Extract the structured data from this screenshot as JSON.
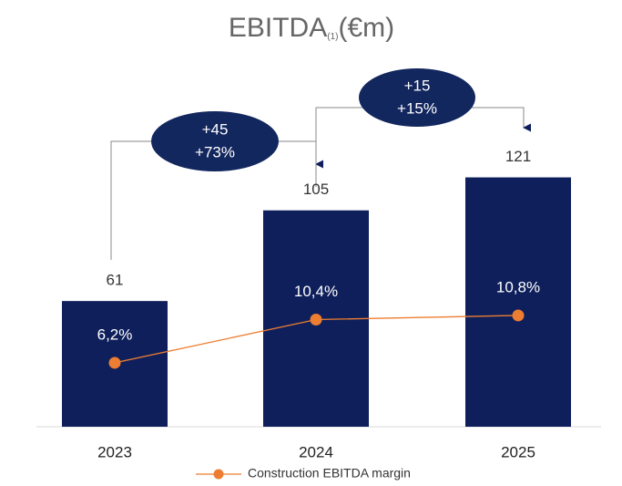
{
  "chart_data": {
    "type": "bar",
    "title": "EBITDA",
    "title_sub": "(1)",
    "title_unit": "(€m)",
    "categories": [
      "2023",
      "2024",
      "2025"
    ],
    "ylim": [
      0,
      200
    ],
    "y2lim": [
      0,
      40
    ],
    "series": [
      {
        "type": "bar",
        "color": "#0e1f5b",
        "values": [
          61,
          105,
          121
        ]
      },
      {
        "type": "line",
        "name": "Construction EBITDA margin",
        "axis": "y2",
        "color": "#ed7d31",
        "values": [
          6.2,
          10.4,
          10.8
        ],
        "value_labels": [
          "6,2%",
          "10,4%",
          "10,8%"
        ]
      }
    ],
    "annotations": [
      {
        "lines": [
          "+45",
          "+73%"
        ]
      },
      {
        "lines": [
          "+15",
          "+15%"
        ]
      }
    ]
  }
}
